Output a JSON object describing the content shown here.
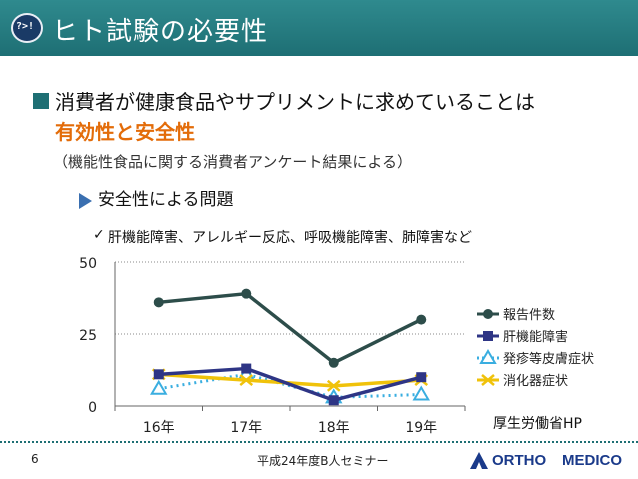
{
  "slide": {
    "icon_text": "?>!",
    "title": "ヒト試験の必要性",
    "line1": "消費者が健康食品やサプリメントに求めていることは",
    "line2": "有効性と安全性",
    "line3": "（機能性食品に関する消費者アンケート結果による）",
    "line4": "安全性による問題",
    "check_mark": "✓",
    "line5": "肝機能障害、アレルギー反応、呼吸機能障害、肺障害など",
    "source": "厚生労働省HP",
    "page_number": "6",
    "footer": "平成24年度B人セミナー",
    "logo_part1": "ORTHO",
    "logo_part2": "MEDICO",
    "accent_color": "#1e6f74",
    "highlight_color": "#e36c09"
  },
  "chart_data": {
    "type": "line",
    "categories": [
      "16年",
      "17年",
      "18年",
      "19年"
    ],
    "ylim": [
      0,
      50
    ],
    "yticks": [
      "0",
      "25",
      "50"
    ],
    "grid": true,
    "legend_position": "right",
    "series": [
      {
        "name": "報告件数",
        "values": [
          36,
          39,
          15,
          30
        ],
        "color": "#2d4d4a",
        "marker": "circle",
        "dash": "solid"
      },
      {
        "name": "肝機能障害",
        "values": [
          11,
          13,
          2,
          10
        ],
        "color": "#2e3585",
        "marker": "square",
        "dash": "solid"
      },
      {
        "name": "発疹等皮膚症状",
        "values": [
          6,
          11,
          3,
          4
        ],
        "color": "#3aaee0",
        "marker": "triangle",
        "dash": "dotted"
      },
      {
        "name": "消化器症状",
        "values": [
          11,
          9,
          7,
          9
        ],
        "color": "#f0c20a",
        "marker": "x",
        "dash": "solid"
      }
    ]
  }
}
